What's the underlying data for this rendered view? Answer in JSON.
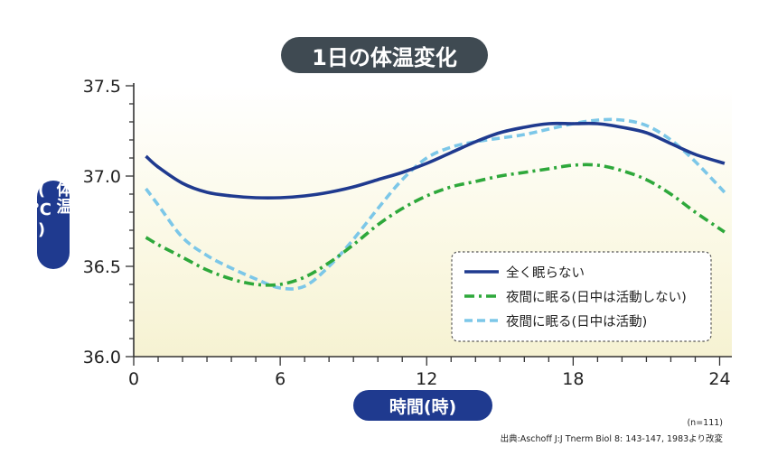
{
  "chart_data": {
    "type": "line",
    "title": "1日の体温変化",
    "xlabel": "時間(時)",
    "ylabel": "体温(℃)",
    "xlim": [
      0,
      24.5
    ],
    "ylim": [
      36.0,
      37.5
    ],
    "x_ticks": [
      0,
      6,
      12,
      18,
      24
    ],
    "y_ticks": [
      "36.0",
      "36.5",
      "37.0",
      "37.5"
    ],
    "grid": false,
    "background": "gradient-cream",
    "legend_position": "bottom-right",
    "series": [
      {
        "name": "全く眠らない",
        "color": "#1f3a8f",
        "style": "solid",
        "x": [
          0.5,
          1,
          2,
          3,
          4,
          5,
          6,
          7,
          8,
          9,
          10,
          11,
          12,
          13,
          14,
          15,
          16,
          17,
          18,
          19,
          20,
          21,
          22,
          23,
          24.2
        ],
        "values": [
          37.11,
          37.05,
          36.96,
          36.91,
          36.89,
          36.88,
          36.88,
          36.89,
          36.91,
          36.94,
          36.98,
          37.02,
          37.07,
          37.13,
          37.19,
          37.24,
          37.27,
          37.29,
          37.29,
          37.29,
          37.27,
          37.24,
          37.18,
          37.12,
          37.07
        ]
      },
      {
        "name": "夜間に眠る(日中は活動しない)",
        "color": "#2ea83b",
        "style": "dashdot",
        "x": [
          0.5,
          1,
          2,
          3,
          4,
          5,
          6,
          7,
          8,
          9,
          10,
          11,
          12,
          13,
          14,
          15,
          16,
          17,
          18,
          19,
          20,
          21,
          22,
          23,
          24.2
        ],
        "values": [
          36.66,
          36.62,
          36.55,
          36.48,
          36.43,
          36.4,
          36.4,
          36.44,
          36.52,
          36.62,
          36.73,
          36.82,
          36.89,
          36.94,
          36.97,
          37.0,
          37.02,
          37.04,
          37.06,
          37.06,
          37.03,
          36.98,
          36.9,
          36.8,
          36.69
        ]
      },
      {
        "name": "夜間に眠る(日中は活動)",
        "color": "#7cc7e8",
        "style": "dashed",
        "x": [
          0.5,
          1,
          2,
          3,
          4,
          5,
          6,
          7,
          8,
          9,
          10,
          11,
          12,
          13,
          14,
          15,
          16,
          17,
          18,
          19,
          20,
          21,
          22,
          23,
          24.2
        ],
        "values": [
          36.93,
          36.84,
          36.66,
          36.56,
          36.49,
          36.43,
          36.38,
          36.39,
          36.5,
          36.65,
          36.82,
          36.98,
          37.1,
          37.16,
          37.19,
          37.21,
          37.23,
          37.26,
          37.29,
          37.31,
          37.31,
          37.28,
          37.2,
          37.08,
          36.91
        ]
      }
    ]
  },
  "notes": {
    "n": "(n=111)",
    "source": "出典:Aschoff J:J Tnerm Biol 8: 143-147, 1983より改変"
  }
}
